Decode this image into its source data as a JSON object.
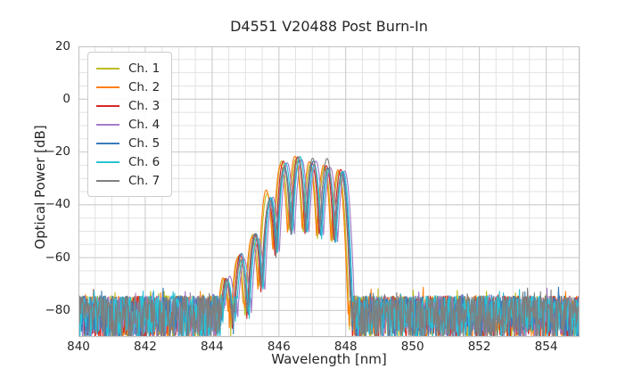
{
  "figure": {
    "background": "#ffffff"
  },
  "chart_data": {
    "type": "line",
    "title": "D4551 V20488 Post Burn-In",
    "xlabel": "Wavelength [nm]",
    "ylabel": "Optical Power [dB]",
    "xlim": [
      840,
      855
    ],
    "ylim": [
      -90,
      20
    ],
    "grid": true,
    "legend_position": "upper left",
    "xticks": {
      "values": [
        840,
        842,
        844,
        846,
        848,
        850,
        852,
        854
      ],
      "labels": [
        "840",
        "842",
        "844",
        "846",
        "848",
        "850",
        "852",
        "854"
      ]
    },
    "yticks": {
      "values": [
        20,
        0,
        -20,
        -40,
        -60,
        -80
      ],
      "labels": [
        "20",
        "0",
        "−20",
        "−40",
        "−60",
        "−80"
      ]
    },
    "minor_grid": {
      "x_step_nm": 0.5,
      "y_step_db": 5
    },
    "style": {
      "grid_major": "#cccccc",
      "grid_minor": "#e2e2e2",
      "spine": "#c0c0c0",
      "text_color": "#262626"
    },
    "series": [
      {
        "name": "Ch. 1",
        "color": "#bcbd22",
        "offset_nm": -0.07,
        "seed": 11,
        "emphasis": {
          "lobe_index": 3,
          "db": 2.0
        }
      },
      {
        "name": "Ch. 2",
        "color": "#ff7f0e",
        "offset_nm": -0.1,
        "seed": 22,
        "emphasis": {
          "lobe_index": 3,
          "db": 4.5
        }
      },
      {
        "name": "Ch. 3",
        "color": "#d62728",
        "offset_nm": -0.02,
        "seed": 33,
        "emphasis": {
          "lobe_index": 4,
          "db": 1.2
        }
      },
      {
        "name": "Ch. 4",
        "color": "#a47dc9",
        "offset_nm": 0.1,
        "seed": 44
      },
      {
        "name": "Ch. 5",
        "color": "#3a7cb8",
        "offset_nm": 0.02,
        "seed": 55
      },
      {
        "name": "Ch. 6",
        "color": "#29c3d6",
        "offset_nm": 0.05,
        "seed": 66
      },
      {
        "name": "Ch. 7",
        "color": "#7f7f7f",
        "offset_nm": 0.0,
        "seed": 77,
        "emphasis": {
          "lobe_index": 7,
          "db": 2.2
        }
      }
    ],
    "spectrum_model": {
      "description": "Fabry-Perot mode comb between ~844.3 and ~848.1 nm over a noise floor; sharp cutoff above 848 nm. Lobe peaks read from plot; 7 channels are small wavelength-shifted copies.",
      "lobes": [
        {
          "center_nm": 844.43,
          "peak_db": -68.0
        },
        {
          "center_nm": 844.86,
          "peak_db": -59.5
        },
        {
          "center_nm": 845.29,
          "peak_db": -51.5
        },
        {
          "center_nm": 845.72,
          "peak_db": -38.0
        },
        {
          "center_nm": 846.15,
          "peak_db": -24.5
        },
        {
          "center_nm": 846.58,
          "peak_db": -22.8
        },
        {
          "center_nm": 847.01,
          "peak_db": -23.5
        },
        {
          "center_nm": 847.44,
          "peak_db": -25.5
        },
        {
          "center_nm": 847.87,
          "peak_db": -27.5
        }
      ],
      "mode_spacing_nm": 0.43,
      "half_spacing_nm": 0.215,
      "notch_depth_db": 28,
      "peak_jitter_db": 3,
      "noise_top_db": -74.5,
      "noise_bottom_db": -91,
      "noise_spike_db": 3.5,
      "cutoff_nm": 848.1,
      "sample_step_nm": 0.015
    }
  }
}
